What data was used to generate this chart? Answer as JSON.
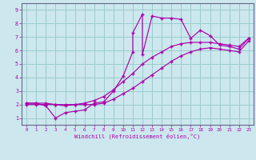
{
  "xlabel": "Windchill (Refroidissement éolien,°C)",
  "bg_color": "#cce8ee",
  "line_color": "#aa00aa",
  "grid_color": "#99cccc",
  "xlim": [
    -0.5,
    23.5
  ],
  "ylim": [
    0.5,
    9.5
  ],
  "xticks": [
    0,
    1,
    2,
    3,
    4,
    5,
    6,
    7,
    8,
    9,
    10,
    11,
    12,
    13,
    14,
    15,
    16,
    17,
    18,
    19,
    20,
    21,
    22,
    23
  ],
  "yticks": [
    1,
    2,
    3,
    4,
    5,
    6,
    7,
    8,
    9
  ],
  "line1_x": [
    0,
    1,
    2,
    3,
    4,
    5,
    6,
    7,
    8,
    9,
    10,
    11,
    11,
    12,
    12,
    13,
    14,
    15,
    16,
    17,
    18,
    19,
    20,
    21,
    22,
    23
  ],
  "line1_y": [
    2.1,
    2.1,
    1.9,
    1.0,
    1.4,
    1.5,
    1.6,
    2.1,
    2.2,
    3.0,
    4.1,
    5.9,
    7.3,
    8.7,
    5.7,
    8.55,
    8.4,
    8.4,
    8.3,
    6.9,
    7.5,
    7.1,
    6.4,
    6.3,
    6.1,
    6.9
  ],
  "line2_x": [
    0,
    1,
    2,
    3,
    4,
    5,
    6,
    7,
    8,
    9,
    10,
    11,
    12,
    13,
    14,
    15,
    16,
    17,
    18,
    19,
    20,
    21,
    22,
    23
  ],
  "line2_y": [
    2.1,
    2.1,
    2.1,
    2.0,
    1.9,
    2.0,
    2.1,
    2.3,
    2.6,
    3.1,
    3.7,
    4.3,
    5.0,
    5.5,
    5.9,
    6.3,
    6.5,
    6.6,
    6.6,
    6.6,
    6.5,
    6.4,
    6.3,
    6.9
  ],
  "line3_x": [
    0,
    1,
    2,
    3,
    4,
    5,
    6,
    7,
    8,
    9,
    10,
    11,
    12,
    13,
    14,
    15,
    16,
    17,
    18,
    19,
    20,
    21,
    22,
    23
  ],
  "line3_y": [
    2.0,
    2.0,
    2.0,
    2.0,
    2.0,
    2.0,
    2.0,
    2.0,
    2.1,
    2.4,
    2.8,
    3.2,
    3.7,
    4.2,
    4.7,
    5.2,
    5.6,
    5.9,
    6.1,
    6.2,
    6.1,
    6.0,
    5.9,
    6.7
  ]
}
